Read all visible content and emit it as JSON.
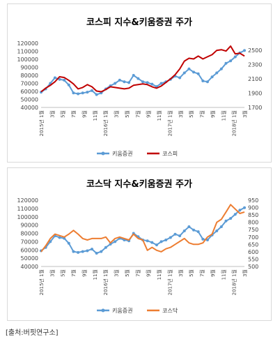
{
  "chart_data": [
    {
      "type": "line",
      "title": "코스피 지수&키움증권 주가",
      "x_labels": [
        "2015년 1월",
        "3월",
        "5월",
        "7월",
        "9월",
        "11월",
        "2016년 1월",
        "3월",
        "5월",
        "7월",
        "9월",
        "11월",
        "2017년 1월",
        "3월",
        "5월",
        "7월",
        "9월",
        "11월",
        "2018년 1월",
        "3월"
      ],
      "y_left_ticks": [
        40000,
        50000,
        60000,
        70000,
        80000,
        90000,
        100000,
        110000,
        120000
      ],
      "y_left_tick_labels": [
        "40000",
        "50000",
        "60000",
        "70000",
        "80000",
        "90000",
        "100000",
        "110000",
        "120000"
      ],
      "y_right_ticks": [
        1700,
        1900,
        2100,
        2300,
        2500
      ],
      "y_right_tick_labels": [
        "1700",
        "1900",
        "2100",
        "2300",
        "2500"
      ],
      "ylim_left": [
        40000,
        120000
      ],
      "ylim_right": [
        1700,
        2600
      ],
      "legend_position": "bottom",
      "series": [
        {
          "name": "키움증권",
          "axis": "left",
          "color": "#5b9bd5",
          "marker": true,
          "values": [
            59000,
            63000,
            70000,
            77000,
            75000,
            74000,
            68000,
            58000,
            57000,
            58000,
            59000,
            61000,
            56000,
            58000,
            63000,
            67000,
            70000,
            74000,
            72000,
            71000,
            80000,
            76000,
            72000,
            71000,
            69000,
            66000,
            70000,
            72000,
            75000,
            79000,
            77000,
            83000,
            88000,
            84000,
            82000,
            73000,
            72000,
            78000,
            83000,
            88000,
            95000,
            98000,
            103000,
            108000,
            111000
          ]
        },
        {
          "name": "코스피",
          "axis": "right",
          "color": "#c00000",
          "marker": false,
          "values": [
            1920,
            1970,
            2010,
            2060,
            2130,
            2120,
            2080,
            2030,
            1960,
            1980,
            2020,
            1990,
            1930,
            1920,
            1950,
            1990,
            1980,
            1970,
            1960,
            1970,
            2010,
            2020,
            2030,
            2020,
            1990,
            1970,
            2000,
            2050,
            2100,
            2160,
            2240,
            2350,
            2390,
            2380,
            2420,
            2380,
            2410,
            2440,
            2500,
            2510,
            2490,
            2560,
            2450,
            2460,
            2420
          ]
        }
      ]
    },
    {
      "type": "line",
      "title": "코스닥 지수&키움증권 주가",
      "x_labels": [
        "2015년 1월",
        "3월",
        "5월",
        "7월",
        "9월",
        "11월",
        "2016년 1월",
        "3월",
        "5월",
        "7월",
        "9월",
        "11월",
        "2017년 1월",
        "3월",
        "5월",
        "7월",
        "9월",
        "11월",
        "2018년 1월",
        "3월"
      ],
      "y_left_ticks": [
        40000,
        50000,
        60000,
        70000,
        80000,
        90000,
        100000,
        110000,
        120000
      ],
      "y_left_tick_labels": [
        "40000",
        "50000",
        "60000",
        "70000",
        "80000",
        "90000",
        "100000",
        "110000",
        "120000"
      ],
      "y_right_ticks": [
        500,
        550,
        600,
        650,
        700,
        750,
        800,
        850,
        900,
        950
      ],
      "y_right_tick_labels": [
        "500",
        "550",
        "600",
        "650",
        "700",
        "750",
        "800",
        "850",
        "900",
        "950"
      ],
      "ylim_left": [
        40000,
        120000
      ],
      "ylim_right": [
        500,
        950
      ],
      "legend_position": "bottom",
      "series": [
        {
          "name": "키움증권",
          "axis": "left",
          "color": "#5b9bd5",
          "marker": true,
          "values": [
            59000,
            63000,
            70000,
            77000,
            75000,
            74000,
            68000,
            58000,
            57000,
            58000,
            59000,
            61000,
            56000,
            58000,
            63000,
            67000,
            70000,
            74000,
            72000,
            71000,
            80000,
            76000,
            72000,
            71000,
            69000,
            66000,
            70000,
            72000,
            75000,
            79000,
            77000,
            83000,
            88000,
            84000,
            82000,
            73000,
            72000,
            78000,
            83000,
            88000,
            95000,
            98000,
            103000,
            108000,
            111000
          ]
        },
        {
          "name": "코스닥",
          "axis": "right",
          "color": "#ed7d31",
          "marker": false,
          "values": [
            600,
            640,
            690,
            720,
            710,
            700,
            720,
            745,
            720,
            690,
            680,
            690,
            690,
            690,
            700,
            660,
            690,
            700,
            690,
            680,
            720,
            690,
            680,
            610,
            630,
            610,
            600,
            620,
            630,
            650,
            670,
            690,
            660,
            650,
            650,
            660,
            700,
            720,
            800,
            820,
            870,
            920,
            890,
            860,
            870
          ]
        }
      ]
    }
  ],
  "source_note": "[출처:버핏연구소]"
}
